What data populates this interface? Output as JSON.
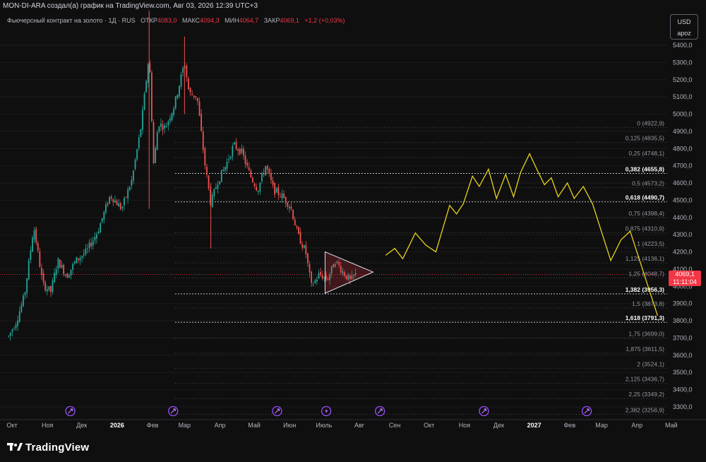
{
  "header": {
    "attribution": "MON-DI-ARA создал(а) график на TradingView.com, Авг 03, 2026 12:39 UTC+3",
    "symbol": "Фьючерсный контракт на золото · 1Д · RUS",
    "ohlc": [
      {
        "label": "ОТКР",
        "value": "4083,0"
      },
      {
        "label": "МАКС",
        "value": "4094,3"
      },
      {
        "label": "МИН",
        "value": "4064,7"
      },
      {
        "label": "ЗАКР",
        "value": "4069,1"
      }
    ],
    "change": "+1,2 (+0,03%)"
  },
  "scale_box": {
    "currency": "USD",
    "mode": "apoz"
  },
  "last_price": {
    "price": "4069,1",
    "countdown": "11:11:04",
    "value": 4069.1
  },
  "colors": {
    "background": "#0f0f0f",
    "up": "#26a69a",
    "down": "#ef5350",
    "projection": "#e8d21e",
    "triangle": "#f23645",
    "fib_line": "#787b86",
    "last_price": "#f23645"
  },
  "footer": {
    "brand": "TradingView"
  },
  "chart_data": {
    "type": "candlestick",
    "title": "Фьючерсный контракт на золото · 1Д · RUS",
    "y_axis": {
      "ticks": [
        3300,
        3400,
        3500,
        3600,
        3700,
        3800,
        3900,
        4000,
        4100,
        4200,
        4300,
        4400,
        4500,
        4600,
        4700,
        4800,
        4900,
        5000,
        5100,
        5200,
        5300,
        5400
      ],
      "tick_labels": [
        "3300,0",
        "3400,0",
        "3500,0",
        "3600,0",
        "3700,0",
        "3800,0",
        "3900,0",
        "4000,0",
        "4100,0",
        "4200,0",
        "4300,0",
        "4400,0",
        "4500,0",
        "4600,0",
        "4700,0",
        "4800,0",
        "4900,0",
        "5000,0",
        "5100,0",
        "5200,0",
        "5300,0",
        "5400,0"
      ],
      "range": [
        3225,
        5470
      ]
    },
    "x_axis": {
      "labels": [
        "Окт",
        "Ноя",
        "Дек",
        "2026",
        "Фев",
        "Мар",
        "Апр",
        "Май",
        "Июн",
        "Июль",
        "Авг",
        "Сен",
        "Окт",
        "Ноя",
        "Дек",
        "2027",
        "Фев",
        "Мар",
        "Апр",
        "Май"
      ],
      "bold": [
        "2026",
        "2027"
      ]
    },
    "fib_levels": [
      {
        "ratio": "0",
        "price": 4922.9,
        "label": "0 (4922,9)",
        "bold": false
      },
      {
        "ratio": "0,125",
        "price": 4835.5,
        "label": "0,125 (4835,5)",
        "bold": false
      },
      {
        "ratio": "0,25",
        "price": 4748.1,
        "label": "0,25 (4748,1)",
        "bold": false
      },
      {
        "ratio": "0,382",
        "price": 4655.8,
        "label": "0,382 (4655,8)",
        "bold": true
      },
      {
        "ratio": "0,5",
        "price": 4573.2,
        "label": "0,5 (4573,2)",
        "bold": false
      },
      {
        "ratio": "0,618",
        "price": 4490.7,
        "label": "0,618 (4490,7)",
        "bold": true
      },
      {
        "ratio": "0,75",
        "price": 4398.4,
        "label": "0,75 (4398,4)",
        "bold": false
      },
      {
        "ratio": "0,875",
        "price": 4310.9,
        "label": "0,875 (4310,9)",
        "bold": false
      },
      {
        "ratio": "1",
        "price": 4223.5,
        "label": "1 (4223,5)",
        "bold": false
      },
      {
        "ratio": "1,125",
        "price": 4136.1,
        "label": "1,125 (4136,1)",
        "bold": false
      },
      {
        "ratio": "1,25",
        "price": 4048.7,
        "label": "1,25 (4048,7)",
        "bold": false
      },
      {
        "ratio": "1,382",
        "price": 3956.3,
        "label": "1,382 (3956,3)",
        "bold": true
      },
      {
        "ratio": "1,5",
        "price": 3873.8,
        "label": "1,5 (3873,8)",
        "bold": false
      },
      {
        "ratio": "1,618",
        "price": 3791.3,
        "label": "1,618 (3791,3)",
        "bold": true
      },
      {
        "ratio": "1,75",
        "price": 3699.0,
        "label": "1,75 (3699,0)",
        "bold": false
      },
      {
        "ratio": "1,875",
        "price": 3611.5,
        "label": "1,875 (3611,5)",
        "bold": false
      },
      {
        "ratio": "2",
        "price": 3524.1,
        "label": "2 (3524,1)",
        "bold": false
      },
      {
        "ratio": "2,125",
        "price": 3436.7,
        "label": "2,125 (3436,7)",
        "bold": false
      },
      {
        "ratio": "2,25",
        "price": 3349.2,
        "label": "2,25 (3349,2)",
        "bold": false
      },
      {
        "ratio": "2,382",
        "price": 3256.9,
        "label": "2,382 (3256,9)",
        "bold": false
      }
    ],
    "price_path": [
      [
        "2025-09-28",
        3710
      ],
      [
        "2025-10-05",
        3800
      ],
      [
        "2025-10-12",
        3950
      ],
      [
        "2025-10-20",
        4350
      ],
      [
        "2025-10-28",
        4010
      ],
      [
        "2025-11-04",
        3970
      ],
      [
        "2025-11-10",
        4150
      ],
      [
        "2025-11-18",
        4060
      ],
      [
        "2025-11-26",
        4150
      ],
      [
        "2025-12-05",
        4200
      ],
      [
        "2025-12-15",
        4320
      ],
      [
        "2025-12-26",
        4530
      ],
      [
        "2026-01-05",
        4450
      ],
      [
        "2026-01-14",
        4620
      ],
      [
        "2026-01-22",
        4930
      ],
      [
        "2026-01-29",
        5350
      ],
      [
        "2026-02-02",
        4700
      ],
      [
        "2026-02-06",
        4950
      ],
      [
        "2026-02-12",
        4920
      ],
      [
        "2026-02-20",
        5050
      ],
      [
        "2026-03-01",
        5300
      ],
      [
        "2026-03-05",
        5120
      ],
      [
        "2026-03-12",
        5100
      ],
      [
        "2026-03-19",
        4700
      ],
      [
        "2026-03-24",
        4480
      ],
      [
        "2026-03-30",
        4610
      ],
      [
        "2026-04-06",
        4700
      ],
      [
        "2026-04-13",
        4820
      ],
      [
        "2026-04-20",
        4780
      ],
      [
        "2026-04-27",
        4650
      ],
      [
        "2026-05-04",
        4560
      ],
      [
        "2026-05-11",
        4700
      ],
      [
        "2026-05-18",
        4560
      ],
      [
        "2026-05-26",
        4520
      ],
      [
        "2026-06-02",
        4460
      ],
      [
        "2026-06-08",
        4300
      ],
      [
        "2026-06-15",
        4200
      ],
      [
        "2026-06-20",
        4000
      ],
      [
        "2026-06-27",
        4070
      ],
      [
        "2026-07-04",
        4040
      ],
      [
        "2026-07-11",
        4150
      ],
      [
        "2026-07-18",
        4080
      ],
      [
        "2026-07-24",
        4030
      ],
      [
        "2026-07-29",
        4069.1
      ]
    ],
    "spikes": [
      {
        "date": "2026-01-29",
        "high": 5600,
        "low": 4450
      },
      {
        "date": "2026-03-01",
        "high": 5450,
        "low": 5000
      },
      {
        "date": "2026-03-24",
        "high": 4600,
        "low": 4220
      }
    ],
    "triangle": [
      [
        "2026-07-02",
        4200
      ],
      [
        "2026-08-13",
        4083
      ],
      [
        "2026-07-02",
        3960
      ]
    ],
    "projection": [
      [
        "2026-08-24",
        4180
      ],
      [
        "2026-09-01",
        4220
      ],
      [
        "2026-09-08",
        4160
      ],
      [
        "2026-09-19",
        4310
      ],
      [
        "2026-09-28",
        4240
      ],
      [
        "2026-10-07",
        4200
      ],
      [
        "2026-10-19",
        4470
      ],
      [
        "2026-10-25",
        4420
      ],
      [
        "2026-10-31",
        4480
      ],
      [
        "2026-11-08",
        4640
      ],
      [
        "2026-11-14",
        4580
      ],
      [
        "2026-11-22",
        4680
      ],
      [
        "2026-11-29",
        4510
      ],
      [
        "2026-12-07",
        4650
      ],
      [
        "2026-12-14",
        4520
      ],
      [
        "2026-12-20",
        4660
      ],
      [
        "2026-12-28",
        4770
      ],
      [
        "2027-01-04",
        4670
      ],
      [
        "2027-01-10",
        4590
      ],
      [
        "2027-01-16",
        4630
      ],
      [
        "2027-01-22",
        4520
      ],
      [
        "2027-01-30",
        4600
      ],
      [
        "2027-02-05",
        4510
      ],
      [
        "2027-02-13",
        4580
      ],
      [
        "2027-02-21",
        4480
      ],
      [
        "2027-03-09",
        4150
      ],
      [
        "2027-03-18",
        4270
      ],
      [
        "2027-03-26",
        4320
      ],
      [
        "2027-04-19",
        3830
      ]
    ],
    "events": [
      {
        "date": "2025-11-21",
        "kind": "arrow"
      },
      {
        "date": "2026-02-19",
        "kind": "arrow"
      },
      {
        "date": "2026-05-21",
        "kind": "arrow"
      },
      {
        "date": "2026-07-03",
        "kind": "bolt"
      },
      {
        "date": "2026-08-19",
        "kind": "arrow"
      },
      {
        "date": "2026-11-18",
        "kind": "arrow"
      },
      {
        "date": "2027-02-16",
        "kind": "arrow"
      }
    ]
  }
}
